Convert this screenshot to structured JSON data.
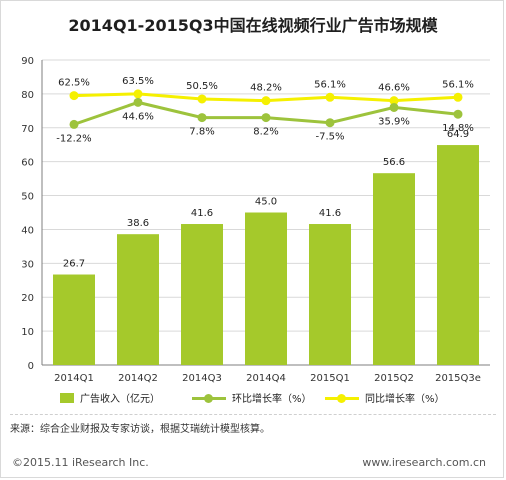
{
  "title": "2014Q1-2015Q3中国在线视频行业广告市场规模",
  "source": "来源：综合企业财报及专家访谈，根据艾瑞统计模型核算。",
  "footer": {
    "copyright": "©2015.11 iResearch Inc.",
    "website": "www.iresearch.com.cn"
  },
  "colors": {
    "bar": "#a5c92b",
    "ring": "#9dc33c",
    "yoy": "#f5f000",
    "grid": "#d9d9d9",
    "axis": "#7f7f7f"
  },
  "chart_data": {
    "type": "bar",
    "title": "2014Q1-2015Q3中国在线视频行业广告市场规模",
    "categories": [
      "2014Q1",
      "2014Q2",
      "2014Q3",
      "2014Q4",
      "2015Q1",
      "2015Q2",
      "2015Q3e"
    ],
    "ylim": [
      0,
      90
    ],
    "yticks": [
      0,
      10,
      20,
      30,
      40,
      50,
      60,
      70,
      80,
      90
    ],
    "grid": true,
    "legend_position": "bottom",
    "series": [
      {
        "name": "广告收入（亿元）",
        "kind": "bar",
        "values": [
          26.7,
          38.6,
          41.6,
          45.0,
          41.6,
          56.6,
          64.9
        ],
        "labels": [
          "26.7",
          "38.6",
          "41.6",
          "45.0",
          "41.6",
          "56.6",
          "64.9"
        ]
      },
      {
        "name": "环比增长率（%）",
        "kind": "line",
        "values": [
          -12.2,
          44.6,
          7.8,
          8.2,
          -7.5,
          35.9,
          14.8
        ],
        "labels": [
          "-12.2%",
          "44.6%",
          "7.8%",
          "8.2%",
          "-7.5%",
          "35.9%",
          "14.8%"
        ],
        "drawn_y": [
          71,
          77.5,
          73,
          73,
          71.5,
          76,
          74
        ]
      },
      {
        "name": "同比增长率（%）",
        "kind": "line",
        "values": [
          62.5,
          63.5,
          50.5,
          48.2,
          56.1,
          46.6,
          56.1
        ],
        "labels": [
          "62.5%",
          "63.5%",
          "50.5%",
          "48.2%",
          "56.1%",
          "46.6%",
          "56.1%"
        ],
        "drawn_y": [
          79.5,
          80,
          78.5,
          78,
          79,
          78,
          79
        ]
      }
    ]
  }
}
